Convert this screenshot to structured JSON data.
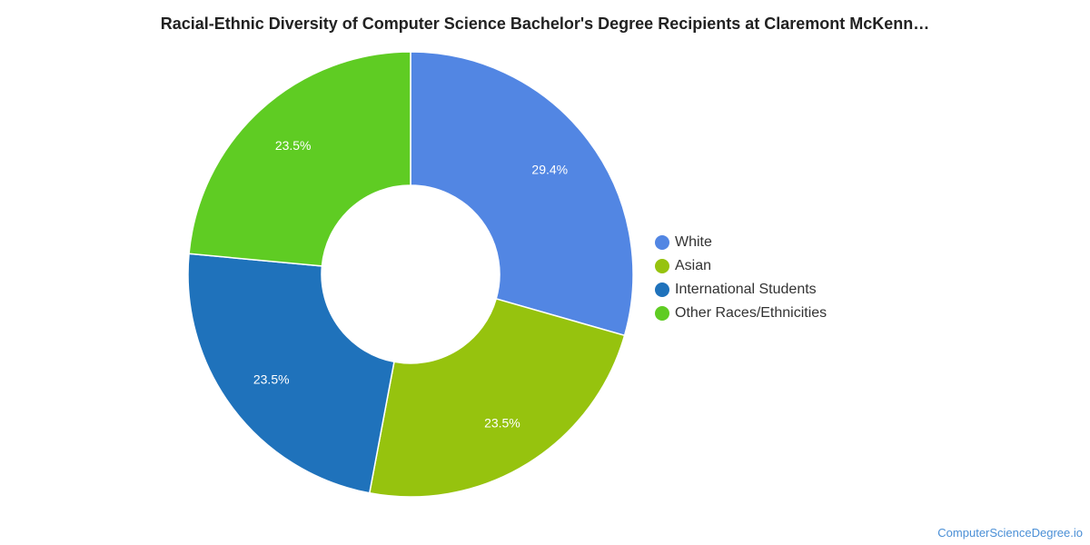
{
  "chart_data": {
    "type": "pie",
    "variant": "donut",
    "title": "Racial-Ethnic Diversity of Computer Science Bachelor's Degree Recipients at Claremont McKenn…",
    "categories": [
      "White",
      "Asian",
      "International Students",
      "Other Races/Ethnicities"
    ],
    "values": [
      29.4,
      23.5,
      23.5,
      23.5
    ],
    "labels": [
      "29.4%",
      "23.5%",
      "23.5%",
      "23.5%"
    ],
    "colors": [
      "#5286e3",
      "#96c30e",
      "#1f72bb",
      "#5fcc23"
    ],
    "legend_position": "right"
  },
  "footer": {
    "source": "ComputerScienceDegree.io"
  }
}
